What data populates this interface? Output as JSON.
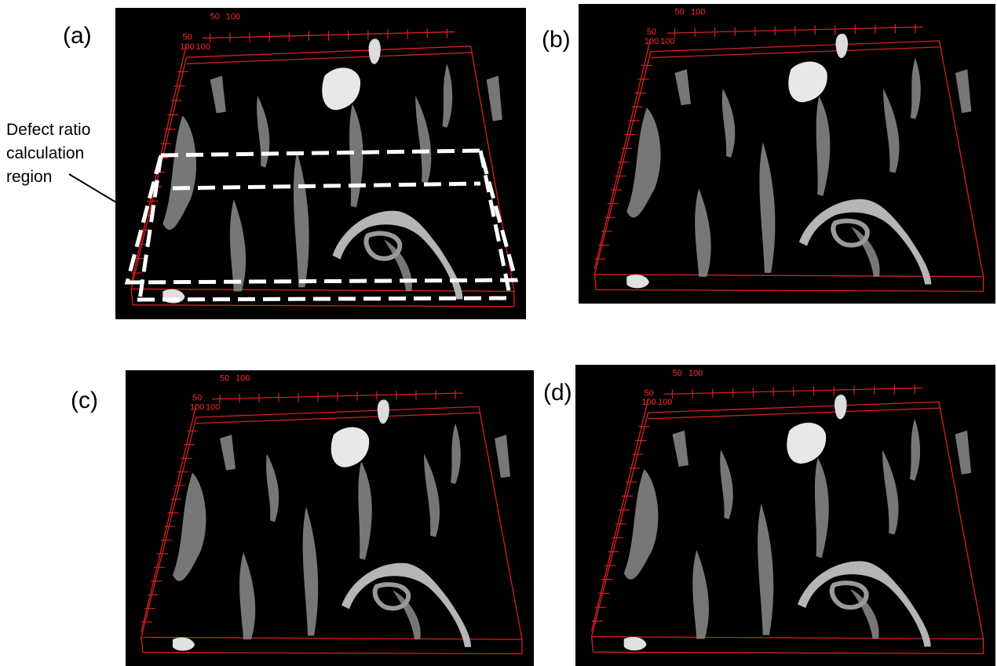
{
  "panels": [
    {
      "label": "(a)",
      "axis_labels": [
        "50",
        "100",
        "50",
        "100",
        "100"
      ]
    },
    {
      "label": "(b)",
      "axis_labels": [
        "50",
        "100",
        "50",
        "100",
        "100"
      ]
    },
    {
      "label": "(c)",
      "axis_labels": [
        "50",
        "100",
        "50",
        "100",
        "100"
      ]
    },
    {
      "label": "(d)",
      "axis_labels": [
        "50",
        "100",
        "50",
        "100",
        "100"
      ]
    }
  ],
  "annotation": {
    "lines": [
      "Defect ratio",
      "calculation",
      "region"
    ]
  }
}
